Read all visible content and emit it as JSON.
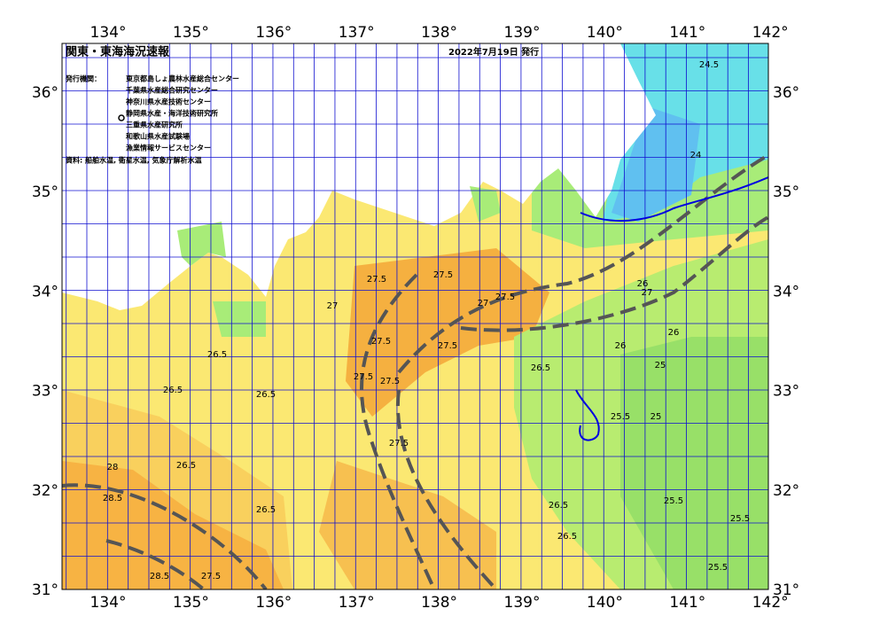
{
  "header": {
    "title": "関東・東海海況速報",
    "issued": "2022年7月19日 発行"
  },
  "credits": {
    "label": "発行機関：",
    "agencies": [
      "東京都島しょ農林水産総合センター",
      "千葉県水産総合研究センター",
      "神奈川県水産技術センター",
      "静岡県水産・海洋技術研究所",
      "三重県水産研究所",
      "和歌山県水産試験場",
      "漁業情報サービスセンター"
    ],
    "source": "資料: 船舶水温, 衛星水温, 気象庁解析水温"
  },
  "axes": {
    "longitude": [
      "134°",
      "135°",
      "136°",
      "137°",
      "138°",
      "139°",
      "140°",
      "141°",
      "142°"
    ],
    "latitude": [
      "36°",
      "35°",
      "34°",
      "33°",
      "32°",
      "31°"
    ]
  },
  "contour_labels": [
    "27.5",
    "27.5",
    "27.5",
    "27.5",
    "27.5",
    "27.5",
    "27.5",
    "27.5",
    "27",
    "27",
    "27",
    "26.5",
    "26.5",
    "26.5",
    "26.5",
    "26.5",
    "26.5",
    "26.5",
    "26.5",
    "26",
    "26",
    "26",
    "25.5",
    "25.5",
    "25.5",
    "25.5",
    "25",
    "25",
    "24.5",
    "24",
    "28",
    "28.5",
    "28.5",
    "27.5"
  ]
}
